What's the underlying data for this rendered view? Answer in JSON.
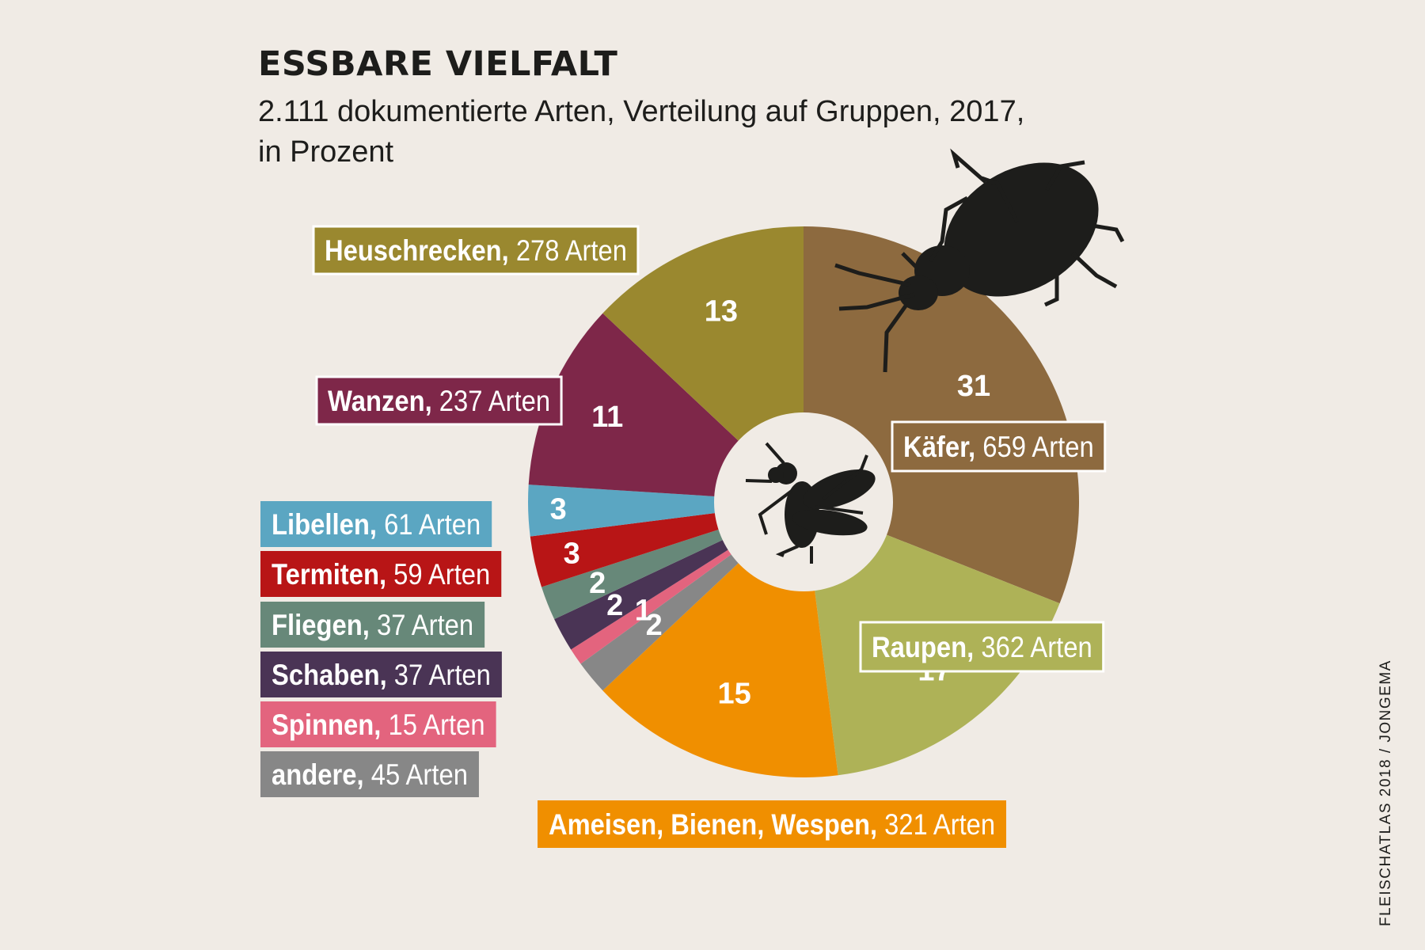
{
  "header": {
    "title": "ESSBARE VIELFALT",
    "subtitle": "2.111 dokumentierte Arten, Verteilung auf Gruppen, 2017, in Prozent"
  },
  "credit": "FLEISCHATLAS 2018 / JONGEMA",
  "icons": {
    "center": "fly-icon",
    "overlay": "beetle-icon"
  },
  "chart_data": {
    "type": "pie",
    "title": "ESSBARE VIELFALT",
    "subtitle": "2.111 dokumentierte Arten, Verteilung auf Gruppen, 2017, in Prozent",
    "unit": "Prozent",
    "total_species": 2111,
    "donut": true,
    "slices": [
      {
        "name": "Käfer",
        "species_label": "659 Arten",
        "species": 659,
        "value": 31,
        "value_label": "31",
        "color": "#8d6a3f"
      },
      {
        "name": "Raupen",
        "species_label": "362 Arten",
        "species": 362,
        "value": 17,
        "value_label": "17",
        "color": "#aeb257"
      },
      {
        "name": "Ameisen, Bienen, Wespen",
        "species_label": "321 Arten",
        "species": 321,
        "value": 15,
        "value_label": "15",
        "color": "#f08f00"
      },
      {
        "name": "andere",
        "species_label": "45 Arten",
        "species": 45,
        "value": 2,
        "value_label": "2",
        "color": "#878787"
      },
      {
        "name": "Spinnen",
        "species_label": "15 Arten",
        "species": 15,
        "value": 1,
        "value_label": "1",
        "color": "#e3647e"
      },
      {
        "name": "Schaben",
        "species_label": "37 Arten",
        "species": 37,
        "value": 2,
        "value_label": "2",
        "color": "#4a3455"
      },
      {
        "name": "Fliegen",
        "species_label": "37 Arten",
        "species": 37,
        "value": 2,
        "value_label": "2",
        "color": "#678879"
      },
      {
        "name": "Termiten",
        "species_label": "59 Arten",
        "species": 59,
        "value": 3,
        "value_label": "3",
        "color": "#b81516"
      },
      {
        "name": "Libellen",
        "species_label": "61 Arten",
        "species": 61,
        "value": 3,
        "value_label": "3",
        "color": "#5ba6c2"
      },
      {
        "name": "Wanzen",
        "species_label": "237 Arten",
        "species": 237,
        "value": 11,
        "value_label": "11",
        "color": "#7e2749"
      },
      {
        "name": "Heuschrecken",
        "species_label": "278 Arten",
        "species": 278,
        "value": 13,
        "value_label": "13",
        "color": "#9a882f"
      }
    ]
  }
}
